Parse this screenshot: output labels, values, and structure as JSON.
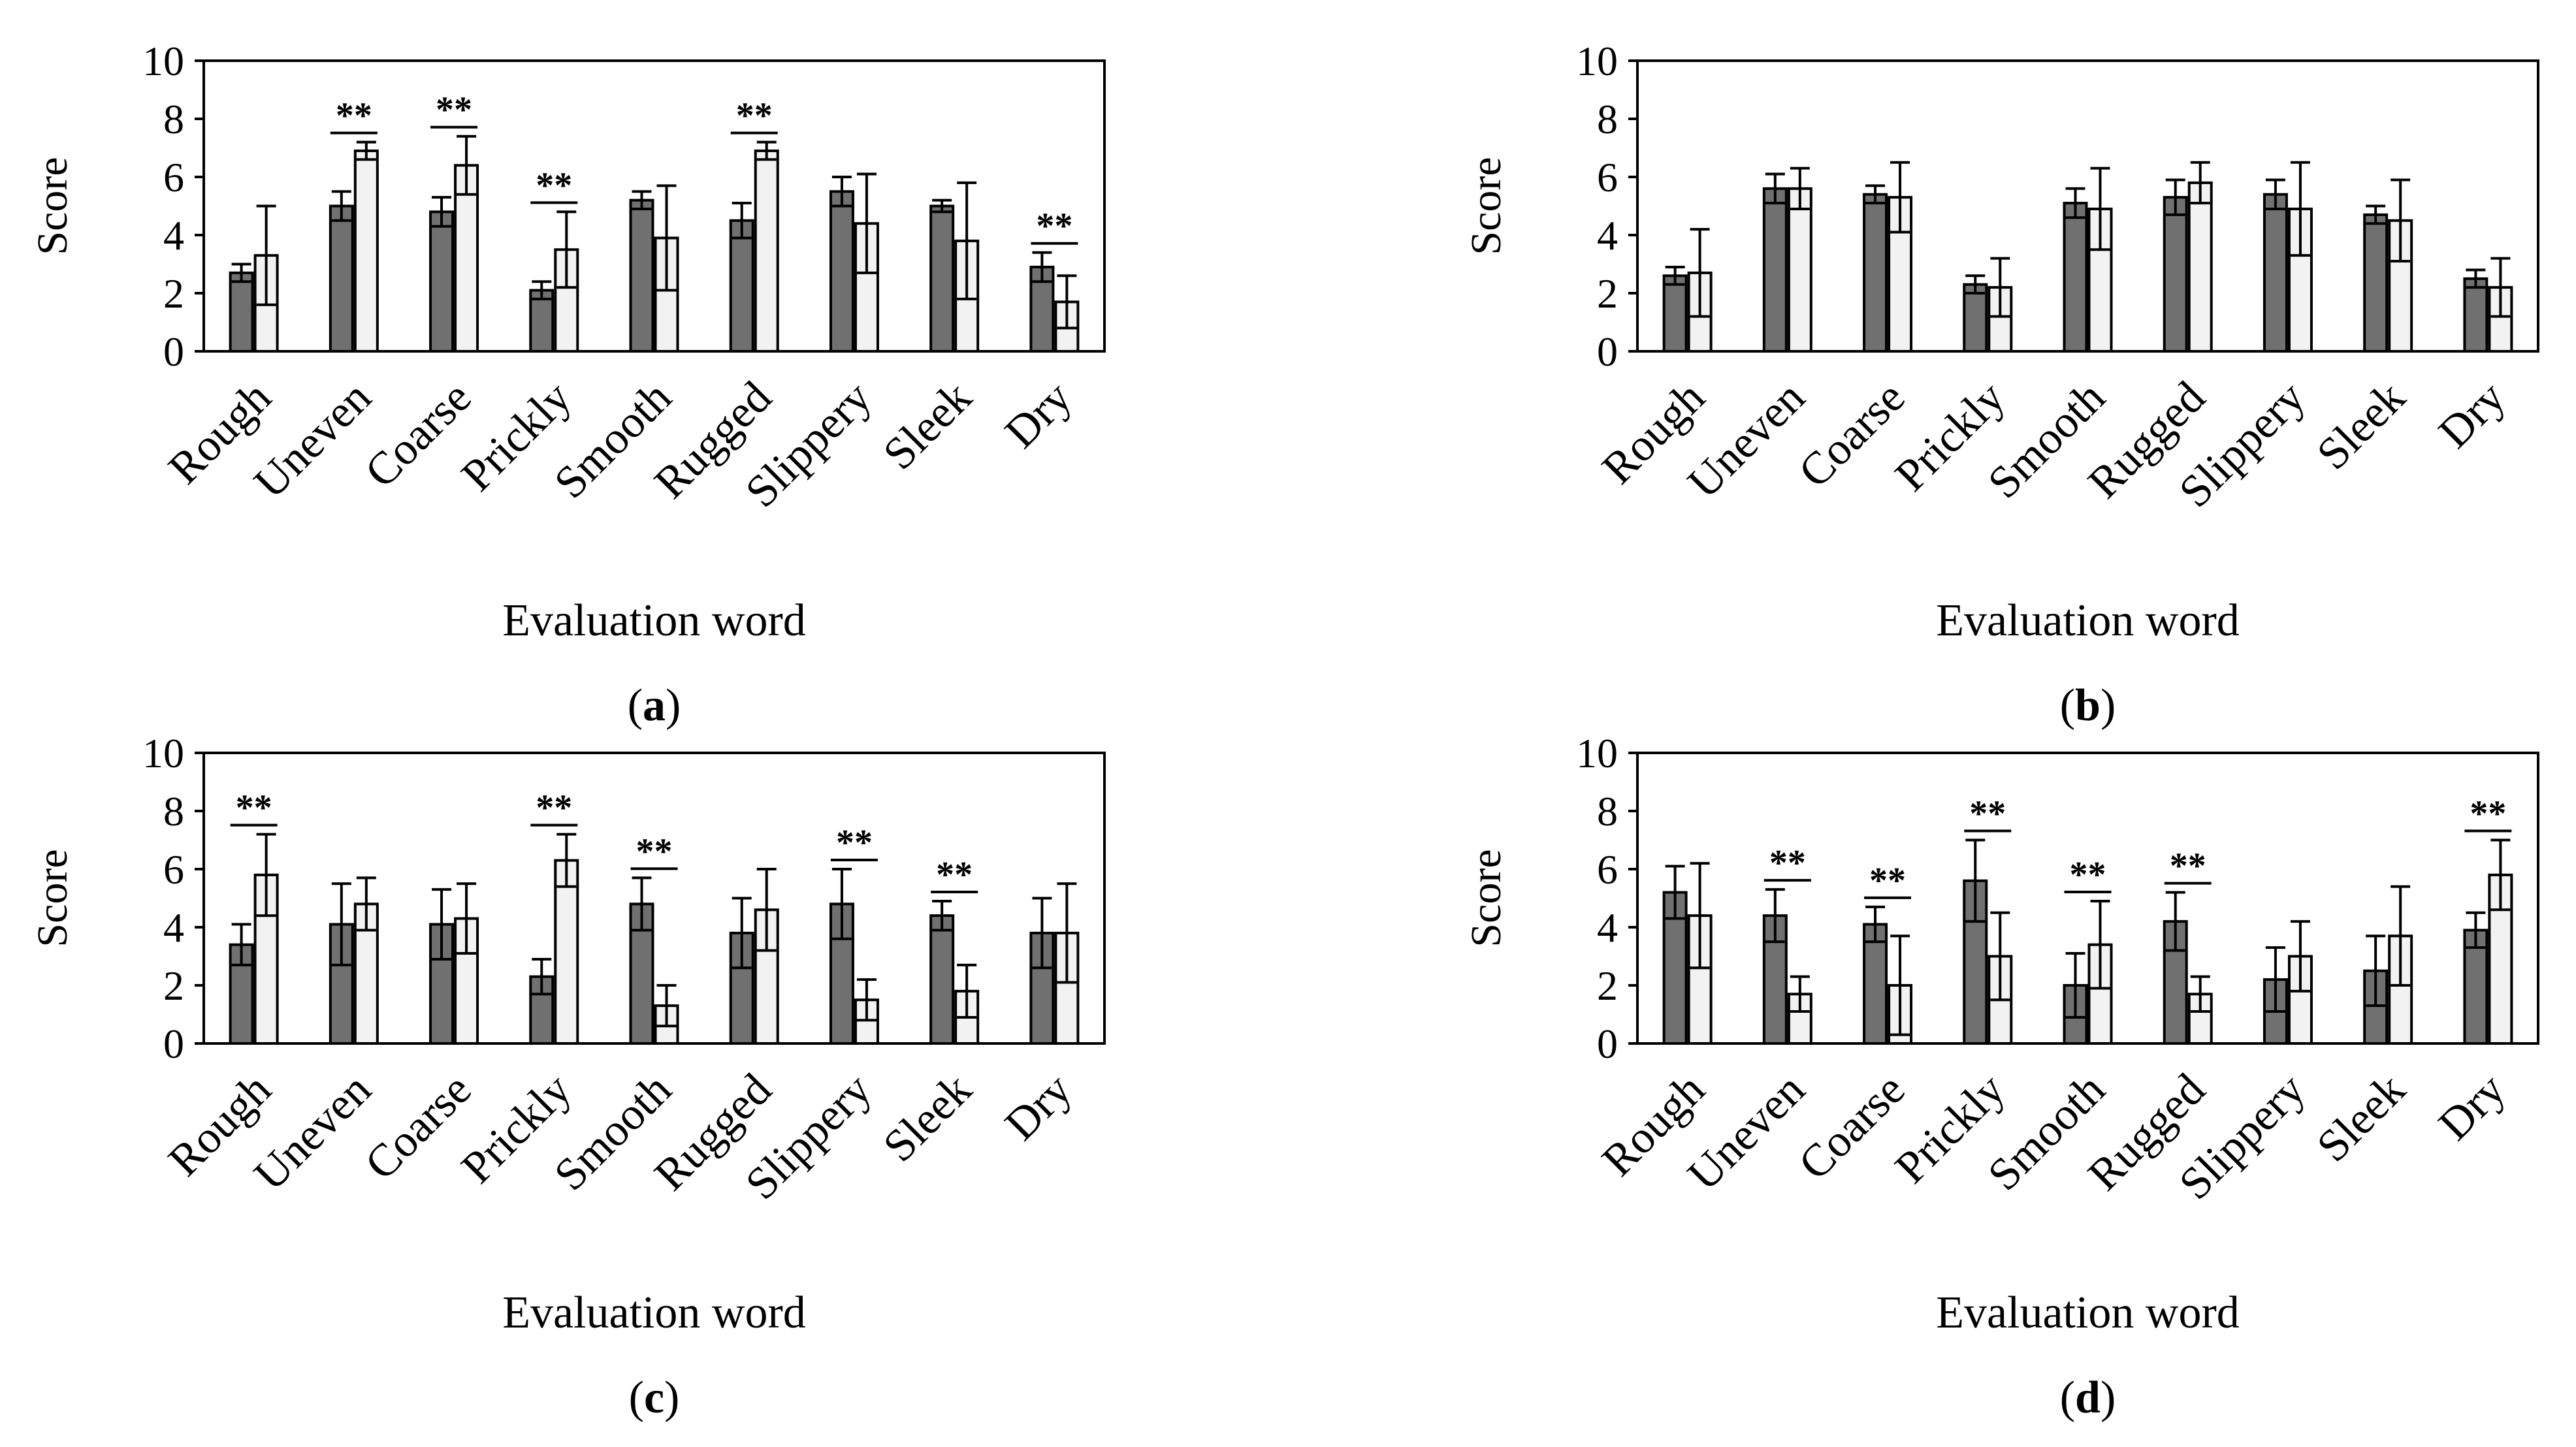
{
  "chart_data": [
    {
      "type": "bar",
      "panel_label": "a",
      "xlabel": "Evaluation word",
      "ylabel": "Score",
      "ylim": [
        0,
        10
      ],
      "yticks": [
        "0",
        "2",
        "4",
        "6",
        "8",
        "10"
      ],
      "categories": [
        "Rough",
        "Uneven",
        "Coarse",
        "Prickly",
        "Smooth",
        "Rugged",
        "Slippery",
        "Sleek",
        "Dry"
      ],
      "series": [
        {
          "name": "dark",
          "color": "#707070",
          "values": [
            2.7,
            5.0,
            4.8,
            2.1,
            5.2,
            4.5,
            5.5,
            5.0,
            2.9
          ],
          "errors": [
            0.3,
            0.5,
            0.5,
            0.3,
            0.3,
            0.6,
            0.5,
            0.2,
            0.5
          ]
        },
        {
          "name": "light",
          "color": "#f2f2f2",
          "values": [
            3.3,
            6.9,
            6.4,
            3.5,
            3.9,
            6.9,
            4.4,
            3.8,
            1.7
          ],
          "errors": [
            1.7,
            0.3,
            1.0,
            1.3,
            1.8,
            0.3,
            1.7,
            2.0,
            0.9
          ]
        }
      ],
      "significance": [
        {
          "index": 1,
          "label": "**"
        },
        {
          "index": 2,
          "label": "**"
        },
        {
          "index": 3,
          "label": "**"
        },
        {
          "index": 5,
          "label": "**"
        },
        {
          "index": 8,
          "label": "**"
        }
      ]
    },
    {
      "type": "bar",
      "panel_label": "b",
      "xlabel": "Evaluation word",
      "ylabel": "Score",
      "ylim": [
        0,
        10
      ],
      "yticks": [
        "0",
        "2",
        "4",
        "6",
        "8",
        "10"
      ],
      "categories": [
        "Rough",
        "Uneven",
        "Coarse",
        "Prickly",
        "Smooth",
        "Rugged",
        "Slippery",
        "Sleek",
        "Dry"
      ],
      "series": [
        {
          "name": "dark",
          "color": "#707070",
          "values": [
            2.6,
            5.6,
            5.4,
            2.3,
            5.1,
            5.3,
            5.4,
            4.7,
            2.5
          ],
          "errors": [
            0.3,
            0.5,
            0.3,
            0.3,
            0.5,
            0.6,
            0.5,
            0.3,
            0.3
          ]
        },
        {
          "name": "light",
          "color": "#f2f2f2",
          "values": [
            2.7,
            5.6,
            5.3,
            2.2,
            4.9,
            5.8,
            4.9,
            4.5,
            2.2
          ],
          "errors": [
            1.5,
            0.7,
            1.2,
            1.0,
            1.4,
            0.7,
            1.6,
            1.4,
            1.0
          ]
        }
      ],
      "significance": []
    },
    {
      "type": "bar",
      "panel_label": "c",
      "xlabel": "Evaluation word",
      "ylabel": "Score",
      "ylim": [
        0,
        10
      ],
      "yticks": [
        "0",
        "2",
        "4",
        "6",
        "8",
        "10"
      ],
      "categories": [
        "Rough",
        "Uneven",
        "Coarse",
        "Prickly",
        "Smooth",
        "Rugged",
        "Slippery",
        "Sleek",
        "Dry"
      ],
      "series": [
        {
          "name": "dark",
          "color": "#707070",
          "values": [
            3.4,
            4.1,
            4.1,
            2.3,
            4.8,
            3.8,
            4.8,
            4.4,
            3.8
          ],
          "errors": [
            0.7,
            1.4,
            1.2,
            0.6,
            0.9,
            1.2,
            1.2,
            0.5,
            1.2
          ]
        },
        {
          "name": "light",
          "color": "#f2f2f2",
          "values": [
            5.8,
            4.8,
            4.3,
            6.3,
            1.3,
            4.6,
            1.5,
            1.8,
            3.8
          ],
          "errors": [
            1.4,
            0.9,
            1.2,
            0.9,
            0.7,
            1.4,
            0.7,
            0.9,
            1.7
          ]
        }
      ],
      "significance": [
        {
          "index": 0,
          "label": "**"
        },
        {
          "index": 3,
          "label": "**"
        },
        {
          "index": 4,
          "label": "**"
        },
        {
          "index": 6,
          "label": "**"
        },
        {
          "index": 7,
          "label": "**"
        }
      ]
    },
    {
      "type": "bar",
      "panel_label": "d",
      "xlabel": "Evaluation word",
      "ylabel": "Score",
      "ylim": [
        0,
        10
      ],
      "yticks": [
        "0",
        "2",
        "4",
        "6",
        "8",
        "10"
      ],
      "categories": [
        "Rough",
        "Uneven",
        "Coarse",
        "Prickly",
        "Smooth",
        "Rugged",
        "Slippery",
        "Sleek",
        "Dry"
      ],
      "series": [
        {
          "name": "dark",
          "color": "#707070",
          "values": [
            5.2,
            4.4,
            4.1,
            5.6,
            2.0,
            4.2,
            2.2,
            2.5,
            3.9
          ],
          "errors": [
            0.9,
            0.9,
            0.6,
            1.4,
            1.1,
            1.0,
            1.1,
            1.2,
            0.6
          ]
        },
        {
          "name": "light",
          "color": "#f2f2f2",
          "values": [
            4.4,
            1.7,
            2.0,
            3.0,
            3.4,
            1.7,
            3.0,
            3.7,
            5.8
          ],
          "errors": [
            1.8,
            0.6,
            1.7,
            1.5,
            1.5,
            0.6,
            1.2,
            1.7,
            1.2
          ]
        }
      ],
      "significance": [
        {
          "index": 1,
          "label": "**"
        },
        {
          "index": 2,
          "label": "**"
        },
        {
          "index": 3,
          "label": "**"
        },
        {
          "index": 4,
          "label": "**"
        },
        {
          "index": 5,
          "label": "**"
        },
        {
          "index": 8,
          "label": "**"
        }
      ]
    }
  ]
}
